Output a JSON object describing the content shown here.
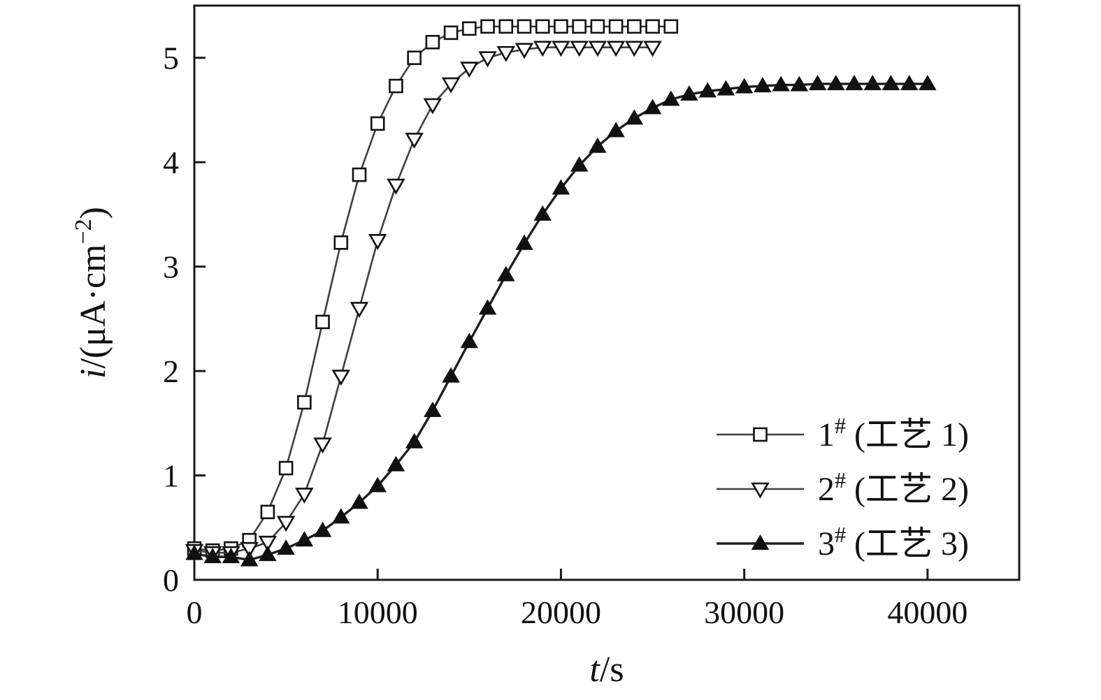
{
  "figure": {
    "background": "#ffffff",
    "frame_color": "#1a1a1a",
    "marker_edge_color": "#111111"
  },
  "chart_data": {
    "type": "line",
    "xlabel": "t/s",
    "ylabel": "i/(μA·cm−2)",
    "xlabel_parts": {
      "italic": "t",
      "rest": "/s"
    },
    "ylabel_parts": {
      "italic": "i",
      "pre": "/(μA·cm",
      "sup": "−2",
      "post": ")"
    },
    "xlim": [
      0,
      45000
    ],
    "ylim": [
      0,
      5.5
    ],
    "x_ticks": [
      0,
      10000,
      20000,
      30000,
      40000
    ],
    "y_ticks": [
      0,
      1,
      2,
      3,
      4,
      5
    ],
    "grid": false,
    "legend_position": "lower right",
    "series": [
      {
        "name": "1# (工艺 1)",
        "marker": "square-open",
        "line_color": "#3f3f3f",
        "line_width": 2.6,
        "x": [
          0,
          1000,
          2000,
          3000,
          4000,
          5000,
          6000,
          7000,
          8000,
          9000,
          10000,
          11000,
          12000,
          13000,
          14000,
          15000,
          16000,
          17000,
          18000,
          19000,
          20000,
          21000,
          22000,
          23000,
          24000,
          25000,
          26000
        ],
        "y": [
          0.3,
          0.28,
          0.3,
          0.38,
          0.65,
          1.07,
          1.7,
          2.47,
          3.23,
          3.88,
          4.37,
          4.73,
          5.0,
          5.15,
          5.24,
          5.28,
          5.3,
          5.3,
          5.3,
          5.3,
          5.3,
          5.3,
          5.3,
          5.3,
          5.3,
          5.3,
          5.3
        ]
      },
      {
        "name": "2# (工艺 2)",
        "marker": "triangle-down-open",
        "line_color": "#3f3f3f",
        "line_width": 2.6,
        "x": [
          0,
          1000,
          2000,
          3000,
          4000,
          5000,
          6000,
          7000,
          8000,
          9000,
          10000,
          11000,
          12000,
          13000,
          14000,
          15000,
          16000,
          17000,
          18000,
          19000,
          20000,
          21000,
          22000,
          23000,
          24000,
          25000
        ],
        "y": [
          0.28,
          0.26,
          0.26,
          0.3,
          0.36,
          0.55,
          0.82,
          1.3,
          1.95,
          2.6,
          3.25,
          3.78,
          4.22,
          4.55,
          4.75,
          4.9,
          5.0,
          5.05,
          5.08,
          5.1,
          5.1,
          5.1,
          5.1,
          5.1,
          5.1,
          5.1
        ]
      },
      {
        "name": "3# (工艺 3)",
        "marker": "triangle-up-filled",
        "line_color": "#1f1f1f",
        "line_width": 3.4,
        "x": [
          0,
          1000,
          2000,
          3000,
          4000,
          5000,
          6000,
          7000,
          8000,
          9000,
          10000,
          11000,
          12000,
          13000,
          14000,
          15000,
          16000,
          17000,
          18000,
          19000,
          20000,
          21000,
          22000,
          23000,
          24000,
          25000,
          26000,
          27000,
          28000,
          29000,
          30000,
          31000,
          32000,
          33000,
          34000,
          35000,
          36000,
          37000,
          38000,
          39000,
          40000
        ],
        "y": [
          0.25,
          0.22,
          0.22,
          0.19,
          0.24,
          0.3,
          0.38,
          0.47,
          0.6,
          0.74,
          0.9,
          1.1,
          1.32,
          1.62,
          1.95,
          2.28,
          2.6,
          2.92,
          3.22,
          3.5,
          3.75,
          3.97,
          4.15,
          4.3,
          4.42,
          4.52,
          4.6,
          4.65,
          4.68,
          4.7,
          4.72,
          4.73,
          4.74,
          4.74,
          4.75,
          4.75,
          4.75,
          4.75,
          4.75,
          4.75,
          4.75
        ]
      }
    ]
  }
}
